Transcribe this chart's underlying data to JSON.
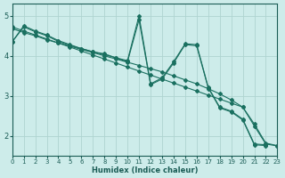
{
  "xlabel": "Humidex (Indice chaleur)",
  "background_color": "#cdecea",
  "grid_color": "#aed4d0",
  "line_color": "#1a7060",
  "xlim": [
    0,
    23
  ],
  "ylim": [
    1.5,
    5.3
  ],
  "yticks": [
    2,
    3,
    4,
    5
  ],
  "xticks": [
    0,
    1,
    2,
    3,
    4,
    5,
    6,
    7,
    8,
    9,
    10,
    11,
    12,
    13,
    14,
    15,
    16,
    17,
    18,
    19,
    20,
    21,
    22,
    23
  ],
  "series": [
    {
      "x": [
        0,
        1,
        2,
        3,
        4,
        5,
        6,
        7,
        8,
        9,
        10,
        11,
        12,
        13,
        14,
        15,
        16,
        17,
        18,
        19,
        20,
        21,
        22,
        23
      ],
      "y": [
        4.72,
        4.62,
        4.52,
        4.42,
        4.32,
        4.22,
        4.12,
        4.02,
        3.92,
        3.82,
        3.72,
        3.62,
        3.52,
        3.42,
        3.32,
        3.22,
        3.12,
        3.02,
        2.92,
        2.82,
        2.72,
        2.25,
        1.8,
        1.75
      ]
    },
    {
      "x": [
        0,
        1,
        2,
        3,
        4,
        5,
        6,
        7,
        8,
        9,
        10,
        11,
        12,
        13,
        14,
        15,
        16,
        17,
        18,
        19,
        20,
        21,
        22,
        23
      ],
      "y": [
        4.68,
        4.58,
        4.5,
        4.4,
        4.32,
        4.24,
        4.16,
        4.08,
        4.0,
        3.92,
        3.84,
        3.76,
        3.68,
        3.6,
        3.5,
        3.4,
        3.3,
        3.18,
        3.05,
        2.9,
        2.72,
        2.3,
        1.82,
        1.76
      ]
    },
    {
      "x": [
        0,
        1,
        2,
        3,
        4,
        5,
        6,
        7,
        8,
        9,
        10,
        11,
        12,
        13,
        14,
        15,
        16,
        17,
        18,
        19,
        20,
        21,
        22,
        23
      ],
      "y": [
        4.35,
        4.75,
        4.62,
        4.52,
        4.38,
        4.28,
        4.18,
        4.1,
        4.05,
        3.95,
        3.88,
        5.0,
        3.3,
        3.45,
        3.85,
        4.3,
        4.28,
        3.22,
        2.72,
        2.62,
        2.42,
        1.8,
        1.78,
        null
      ]
    },
    {
      "x": [
        0,
        1,
        2,
        3,
        4,
        5,
        6,
        7,
        8,
        9,
        10,
        11,
        12,
        13,
        14,
        15,
        16,
        17,
        18,
        19,
        20,
        21,
        22,
        23
      ],
      "y": [
        4.35,
        4.72,
        4.6,
        4.5,
        4.36,
        4.26,
        4.18,
        4.1,
        4.03,
        3.95,
        3.85,
        4.9,
        3.28,
        3.42,
        3.82,
        4.28,
        4.25,
        3.2,
        2.7,
        2.6,
        2.4,
        1.78,
        1.76,
        null
      ]
    }
  ]
}
